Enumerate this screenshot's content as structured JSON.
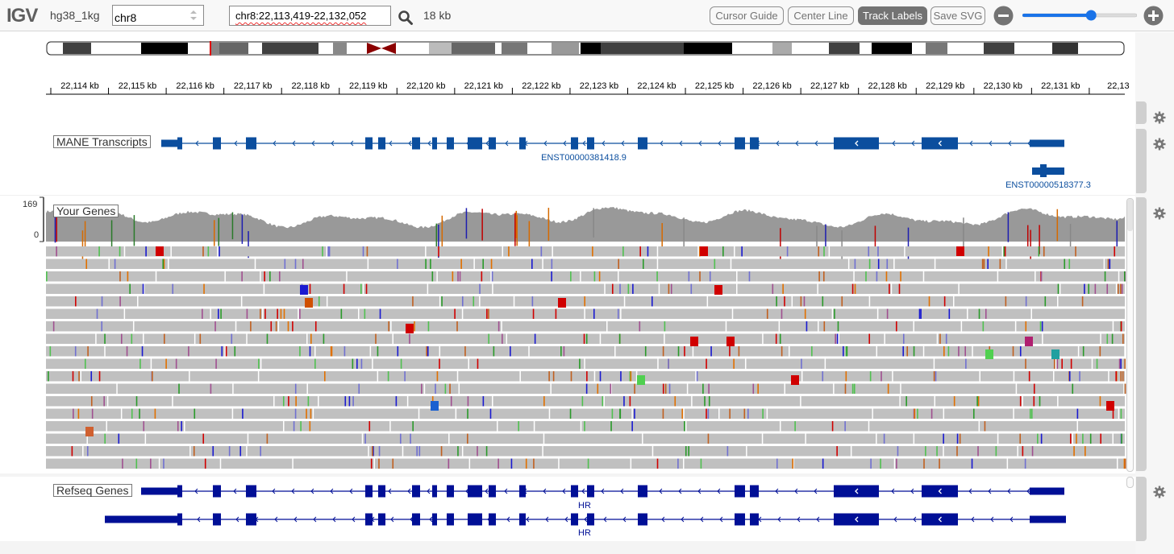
{
  "app": {
    "logo": "IGV"
  },
  "navbar": {
    "genome": "hg38_1kg",
    "chromosome": "chr8",
    "locus": "chr8:22,113,419-22,132,052",
    "window_width": "18 kb",
    "buttons": {
      "cursor_guide": "Cursor Guide",
      "center_line": "Center Line",
      "track_labels": "Track Labels",
      "save_svg": "Save SVG"
    },
    "zoom_fraction": 0.6
  },
  "ruler": {
    "ticks": [
      "22,114 kb",
      "22,115 kb",
      "22,116 kb",
      "22,117 kb",
      "22,118 kb",
      "22,119 kb",
      "22,120 kb",
      "22,121 kb",
      "22,122 kb",
      "22,123 kb",
      "22,124 kb",
      "22,125 kb",
      "22,126 kb",
      "22,127 kb",
      "22,128 kb",
      "22,129 kb",
      "22,130 kb",
      "22,131 kb",
      "22,13"
    ]
  },
  "tracks": {
    "mane": {
      "label": "MANE Transcripts",
      "transcript1": "ENST00000381418.9",
      "transcript2": "ENST00000518377.3"
    },
    "alignments": {
      "label": "Your Genes",
      "coverage_max": "169",
      "coverage_min": "0"
    },
    "refseq": {
      "label": "Refseq Genes",
      "gene1": "HR",
      "gene2": "HR"
    }
  },
  "colors": {
    "mane_blue": "#0b4e9e",
    "refseq_navy": "#000f96",
    "coverage_gray": "#999999",
    "read_gray": "#c0c0c0",
    "centromere": "#8b0000",
    "locus_marker": "#e00000"
  },
  "icons": {
    "search": "search-icon",
    "zoom_out": "minus-circle-icon",
    "zoom_in": "plus-circle-icon",
    "track_menu": "gear-icon"
  }
}
